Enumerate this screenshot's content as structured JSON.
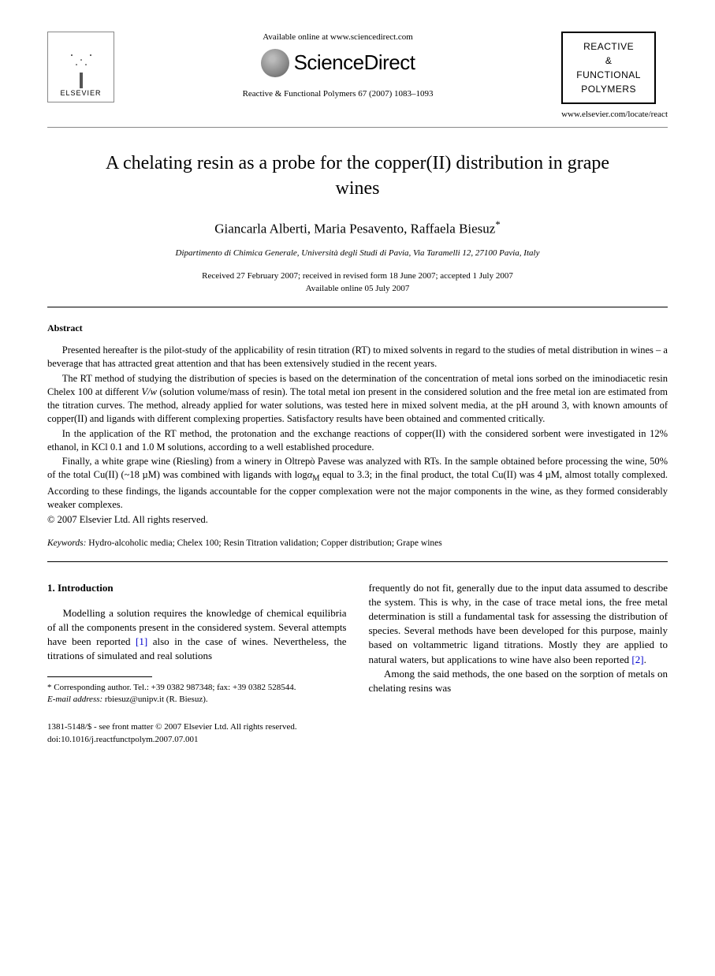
{
  "header": {
    "available_text": "Available online at www.sciencedirect.com",
    "sciencedirect_label": "ScienceDirect",
    "journal_reference": "Reactive & Functional Polymers 67 (2007) 1083–1093",
    "elsevier_label": "ELSEVIER",
    "journal_box_line1": "REACTIVE",
    "journal_box_line2": "&",
    "journal_box_line3": "FUNCTIONAL",
    "journal_box_line4": "POLYMERS",
    "journal_url": "www.elsevier.com/locate/react"
  },
  "paper": {
    "title": "A chelating resin as a probe for the copper(II) distribution in grape wines",
    "authors": "Giancarla Alberti, Maria Pesavento, Raffaela Biesuz",
    "author_marker": "*",
    "affiliation": "Dipartimento di Chimica Generale, Università degli Studi di Pavia, Via Taramelli 12, 27100 Pavia, Italy",
    "dates_line1": "Received 27 February 2007; received in revised form 18 June 2007; accepted 1 July 2007",
    "dates_line2": "Available online 05 July 2007"
  },
  "abstract": {
    "heading": "Abstract",
    "p1": "Presented hereafter is the pilot-study of the applicability of resin titration (RT) to mixed solvents in regard to the studies of metal distribution in wines – a beverage that has attracted great attention and that has been extensively studied in the recent years.",
    "p2_a": "The RT method of studying the distribution of species is based on the determination of the concentration of metal ions sorbed on the iminodiacetic resin Chelex 100 at different ",
    "p2_vw": "V/w",
    "p2_b": " (solution volume/mass of resin). The total metal ion present in the considered solution and the free metal ion are estimated from the titration curves. The method, already applied for water solutions, was tested here in mixed solvent media, at the pH around 3, with known amounts of copper(II) and ligands with different complexing properties. Satisfactory results have been obtained and commented critically.",
    "p3": "In the application of the RT method, the protonation and the exchange reactions of copper(II) with the considered sorbent were investigated in 12% ethanol, in KCl 0.1 and 1.0 M solutions, according to a well established procedure.",
    "p4_a": "Finally, a white grape wine (Riesling) from a winery in Oltrepò Pavese was analyzed with RTs. In the sample obtained before processing the wine, 50% of the total Cu(II) (~18 µM) was combined with ligands with log",
    "p4_alpha": "α",
    "p4_m": "M",
    "p4_b": " equal to 3.3; in the final product, the total Cu(II) was 4 µM, almost totally complexed. According to these findings, the ligands accountable for the copper complexation were not the major components in the wine, as they formed considerably weaker complexes.",
    "copyright": "© 2007 Elsevier Ltd. All rights reserved."
  },
  "keywords": {
    "label": "Keywords:",
    "text": " Hydro-alcoholic media; Chelex 100; Resin Titration validation; Copper distribution; Grape wines"
  },
  "body": {
    "section_heading": "1. Introduction",
    "left_p1_a": "Modelling a solution requires the knowledge of chemical equilibria of all the components present in the considered system. Several attempts have been reported ",
    "ref1": "[1]",
    "left_p1_b": " also in the case of wines. Nevertheless, the titrations of simulated and real solutions",
    "right_p1_a": "frequently do not fit, generally due to the input data assumed to describe the system. This is why, in the case of trace metal ions, the free metal determination is still a fundamental task for assessing the distribution of species. Several methods have been developed for this purpose, mainly based on voltammetric ligand titrations. Mostly they are applied to natural waters, but applications to wine have also been reported ",
    "ref2": "[2]",
    "right_p1_b": ".",
    "right_p2": "Among the said methods, the one based on the sorption of metals on chelating resins was"
  },
  "footnote": {
    "corr_label": "* ",
    "corr_text": "Corresponding author. Tel.: +39 0382 987348; fax: +39 0382 528544.",
    "email_label": "E-mail address:",
    "email": " rbiesuz@unipv.it",
    "email_person": " (R. Biesuz)."
  },
  "bottom": {
    "issn": "1381-5148/$ - see front matter © 2007 Elsevier Ltd. All rights reserved.",
    "doi": "doi:10.1016/j.reactfunctpolym.2007.07.001"
  },
  "colors": {
    "text": "#000000",
    "background": "#ffffff",
    "link": "#0000cc",
    "rule": "#000000",
    "light_rule": "#888888"
  },
  "typography": {
    "body_font": "Times New Roman",
    "title_size_pt": 24,
    "authors_size_pt": 17,
    "abstract_size_pt": 12.5,
    "body_size_pt": 13,
    "footnote_size_pt": 11
  }
}
